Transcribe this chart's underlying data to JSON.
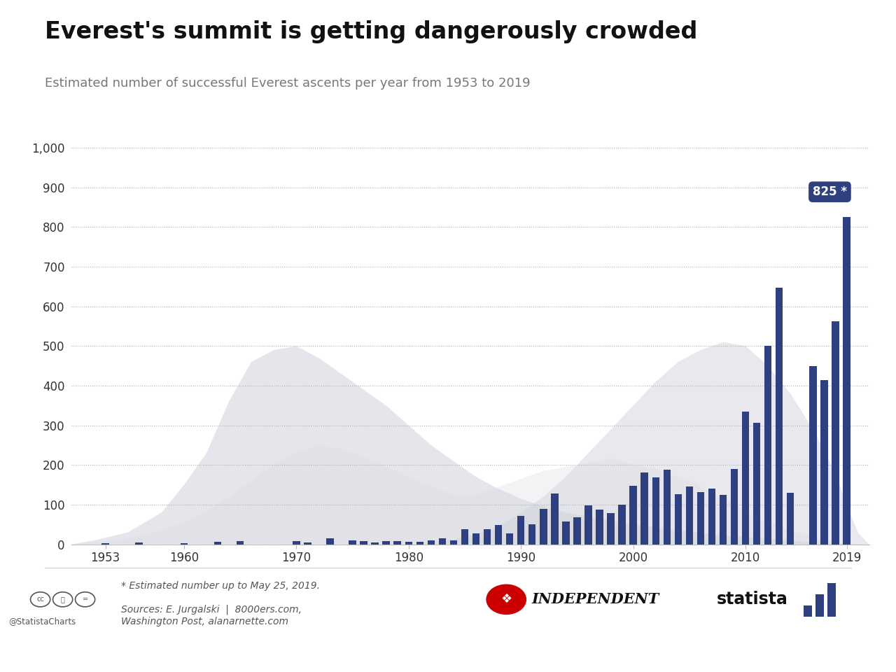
{
  "title": "Everest's summit is getting dangerously crowded",
  "subtitle": "Estimated number of successful Everest ascents per year from 1953 to 2019",
  "footnote": "* Estimated number up to May 25, 2019.",
  "sources": "Sources: E. Jurgalski  |  8000ers.com,\nWashington Post, alanarnette.com",
  "background_color": "#ffffff",
  "plot_bg_color": "#f7f7f5",
  "bar_color": "#2e4080",
  "label_bg_color": "#2e4080",
  "label_text_color": "#ffffff",
  "title_color": "#111111",
  "subtitle_color": "#777777",
  "ylim": [
    0,
    1000
  ],
  "yticks": [
    0,
    100,
    200,
    300,
    400,
    500,
    600,
    700,
    800,
    900,
    1000
  ],
  "ytick_labels": [
    "0",
    "100",
    "200",
    "300",
    "400",
    "500",
    "600",
    "700",
    "800",
    "900",
    "1,000"
  ],
  "years": [
    1953,
    1954,
    1955,
    1956,
    1957,
    1958,
    1959,
    1960,
    1961,
    1962,
    1963,
    1964,
    1965,
    1966,
    1967,
    1968,
    1969,
    1970,
    1971,
    1972,
    1973,
    1974,
    1975,
    1976,
    1977,
    1978,
    1979,
    1980,
    1981,
    1982,
    1983,
    1984,
    1985,
    1986,
    1987,
    1988,
    1989,
    1990,
    1991,
    1992,
    1993,
    1994,
    1995,
    1996,
    1997,
    1998,
    1999,
    2000,
    2001,
    2002,
    2003,
    2004,
    2005,
    2006,
    2007,
    2008,
    2009,
    2010,
    2011,
    2012,
    2013,
    2014,
    2015,
    2016,
    2017,
    2018,
    2019
  ],
  "values": [
    2,
    0,
    0,
    4,
    0,
    0,
    0,
    2,
    0,
    0,
    6,
    0,
    8,
    0,
    0,
    0,
    0,
    8,
    4,
    0,
    16,
    0,
    10,
    8,
    4,
    8,
    8,
    6,
    6,
    10,
    16,
    10,
    38,
    28,
    38,
    48,
    28,
    72,
    50,
    90,
    129,
    58,
    68,
    98,
    87,
    78,
    100,
    148,
    182,
    168,
    189,
    127,
    145,
    132,
    140,
    125,
    190,
    335,
    306,
    500,
    648,
    130,
    0,
    450,
    415,
    563,
    825
  ],
  "xtick_years": [
    1953,
    1960,
    1970,
    1980,
    1990,
    2000,
    2010,
    2019
  ],
  "highlight_year": 2019,
  "highlight_value": 825,
  "highlight_label": "825 *",
  "mountain1_x": [
    1950,
    1952,
    1955,
    1958,
    1960,
    1962,
    1964,
    1966,
    1968,
    1970,
    1972,
    1974,
    1976,
    1978,
    1980,
    1982,
    1984,
    1986,
    1988,
    1990,
    1992,
    1994,
    1996,
    1998,
    2000,
    2002,
    2004,
    2006,
    2008,
    2010,
    2012,
    2014,
    2015,
    2016,
    2017,
    2018,
    2019,
    2020,
    2021
  ],
  "mountain1_y": [
    0,
    10,
    30,
    80,
    150,
    230,
    360,
    460,
    490,
    500,
    470,
    430,
    390,
    350,
    300,
    250,
    210,
    170,
    140,
    115,
    95,
    80,
    70,
    60,
    50,
    42,
    35,
    28,
    22,
    18,
    14,
    10,
    7,
    5,
    3,
    2,
    1,
    0,
    0
  ],
  "mountain2_x": [
    1950,
    1952,
    1954,
    1956,
    1958,
    1960,
    1962,
    1964,
    1966,
    1968,
    1970,
    1972,
    1974,
    1976,
    1978,
    1980,
    1982,
    1984,
    1985,
    1986,
    1987,
    1988,
    1989,
    1990,
    1991,
    1992,
    1993,
    1994,
    1995,
    1996,
    1997,
    1998,
    1999,
    2000,
    2001,
    2002,
    2003,
    2004,
    2005,
    2006,
    2007,
    2008,
    2009,
    2010,
    2011,
    2012,
    2013,
    2014,
    2015,
    2016,
    2017,
    2018,
    2019,
    2020,
    2021
  ],
  "mountain2_y": [
    0,
    5,
    10,
    20,
    35,
    55,
    85,
    120,
    160,
    200,
    230,
    250,
    240,
    220,
    195,
    170,
    145,
    125,
    120,
    125,
    135,
    145,
    155,
    165,
    175,
    185,
    190,
    195,
    200,
    205,
    210,
    215,
    210,
    200,
    195,
    190,
    180,
    170,
    160,
    145,
    130,
    115,
    100,
    85,
    70,
    55,
    45,
    35,
    25,
    18,
    12,
    7,
    3,
    1,
    0
  ],
  "mountain3_x": [
    1980,
    1982,
    1984,
    1986,
    1988,
    1990,
    1992,
    1994,
    1996,
    1998,
    2000,
    2002,
    2004,
    2006,
    2008,
    2010,
    2012,
    2014,
    2016,
    2018,
    2019,
    2020,
    2021
  ],
  "mountain3_y": [
    0,
    5,
    12,
    25,
    45,
    80,
    120,
    170,
    230,
    290,
    350,
    410,
    460,
    490,
    510,
    500,
    450,
    380,
    290,
    180,
    100,
    30,
    0
  ]
}
